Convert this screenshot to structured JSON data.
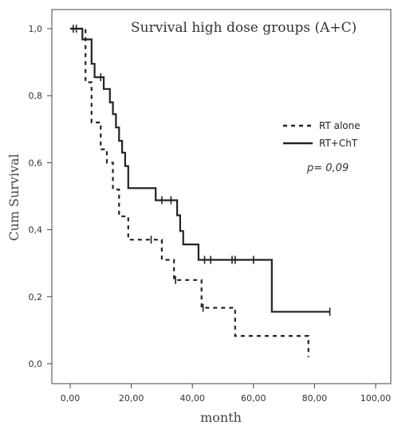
{
  "chart_data": {
    "type": "line",
    "title": "Survival high dose groups (A+C)",
    "xlabel": "month",
    "ylabel": "Cum Survival",
    "xlim": [
      0,
      100
    ],
    "ylim": [
      0,
      1
    ],
    "x_ticks": [
      "0,00",
      "20,00",
      "40,00",
      "60,00",
      "80,00",
      "100,00"
    ],
    "y_ticks": [
      "0,0",
      "0,2",
      "0,4",
      "0,6",
      "0,8",
      "1,0"
    ],
    "x_tick_values": [
      0,
      20,
      40,
      60,
      80,
      100
    ],
    "y_tick_values": [
      0,
      0.2,
      0.4,
      0.6,
      0.8,
      1.0
    ],
    "grid": false,
    "legend_position": "right",
    "annotation": "p= 0,09",
    "series": [
      {
        "name": "RT alone",
        "style": "dashed",
        "color": "#222222",
        "steps": [
          [
            0,
            1.0
          ],
          [
            5,
            0.84
          ],
          [
            7,
            0.72
          ],
          [
            10,
            0.64
          ],
          [
            12,
            0.6
          ],
          [
            14,
            0.52
          ],
          [
            16,
            0.44
          ],
          [
            19,
            0.37
          ],
          [
            26,
            0.37
          ],
          [
            30,
            0.31
          ],
          [
            34,
            0.25
          ],
          [
            43,
            0.167
          ],
          [
            49,
            0.167
          ],
          [
            54,
            0.083
          ],
          [
            77,
            0.083
          ],
          [
            78,
            0.02
          ]
        ],
        "censored": [
          [
            26.5,
            0.37
          ],
          [
            34.5,
            0.25
          ],
          [
            43.5,
            0.167
          ]
        ]
      },
      {
        "name": "RT+ChT",
        "style": "solid",
        "color": "#222222",
        "steps": [
          [
            0,
            1.0
          ],
          [
            3,
            1.0
          ],
          [
            4,
            0.968
          ],
          [
            7,
            0.895
          ],
          [
            8,
            0.855
          ],
          [
            11,
            0.82
          ],
          [
            13,
            0.78
          ],
          [
            14,
            0.745
          ],
          [
            15,
            0.705
          ],
          [
            16,
            0.665
          ],
          [
            17,
            0.63
          ],
          [
            18,
            0.59
          ],
          [
            19,
            0.524
          ],
          [
            28,
            0.488
          ],
          [
            35,
            0.443
          ],
          [
            36,
            0.396
          ],
          [
            37,
            0.356
          ],
          [
            42,
            0.31
          ],
          [
            66,
            0.155
          ],
          [
            85,
            0.155
          ]
        ],
        "censored": [
          [
            1,
            1.0
          ],
          [
            2,
            1.0
          ],
          [
            10,
            0.855
          ],
          [
            30,
            0.488
          ],
          [
            33,
            0.488
          ],
          [
            44,
            0.31
          ],
          [
            46,
            0.31
          ],
          [
            53,
            0.31
          ],
          [
            54,
            0.31
          ],
          [
            60,
            0.31
          ],
          [
            85,
            0.155
          ]
        ]
      }
    ]
  }
}
